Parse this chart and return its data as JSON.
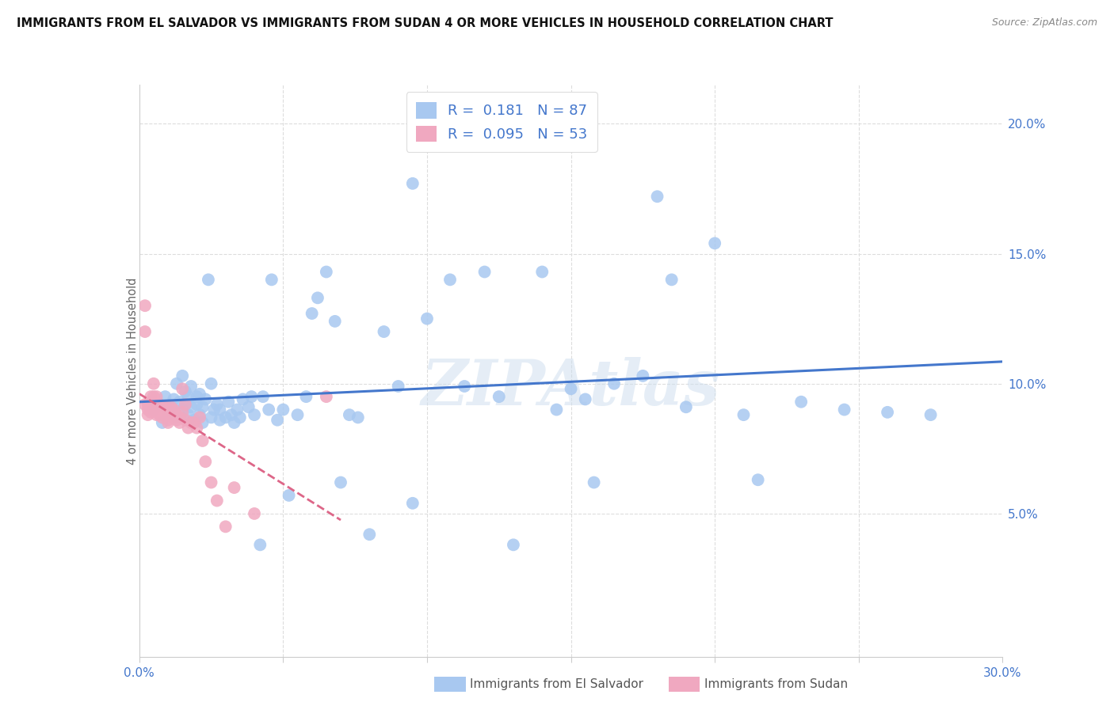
{
  "title": "IMMIGRANTS FROM EL SALVADOR VS IMMIGRANTS FROM SUDAN 4 OR MORE VEHICLES IN HOUSEHOLD CORRELATION CHART",
  "source": "Source: ZipAtlas.com",
  "ylabel": "4 or more Vehicles in Household",
  "ylabel_right_ticks": [
    "5.0%",
    "10.0%",
    "15.0%",
    "20.0%"
  ],
  "ylabel_right_vals": [
    0.05,
    0.1,
    0.15,
    0.2
  ],
  "xlim": [
    0.0,
    0.3
  ],
  "ylim": [
    -0.005,
    0.215
  ],
  "blue_R": "0.181",
  "blue_N": "87",
  "pink_R": "0.095",
  "pink_N": "53",
  "blue_color": "#a8c8f0",
  "pink_color": "#f0a8c0",
  "blue_line_color": "#4477cc",
  "pink_line_color": "#dd6688",
  "watermark": "ZIPAtlas",
  "blue_scatter_x": [
    0.005,
    0.007,
    0.008,
    0.009,
    0.01,
    0.011,
    0.012,
    0.013,
    0.013,
    0.014,
    0.015,
    0.015,
    0.016,
    0.016,
    0.017,
    0.017,
    0.018,
    0.018,
    0.019,
    0.02,
    0.02,
    0.021,
    0.021,
    0.022,
    0.022,
    0.023,
    0.024,
    0.025,
    0.025,
    0.026,
    0.027,
    0.028,
    0.028,
    0.03,
    0.031,
    0.032,
    0.033,
    0.034,
    0.035,
    0.036,
    0.038,
    0.039,
    0.04,
    0.042,
    0.043,
    0.045,
    0.046,
    0.048,
    0.05,
    0.052,
    0.055,
    0.058,
    0.06,
    0.062,
    0.065,
    0.068,
    0.07,
    0.073,
    0.076,
    0.08,
    0.085,
    0.09,
    0.095,
    0.1,
    0.108,
    0.113,
    0.12,
    0.125,
    0.13,
    0.14,
    0.145,
    0.15,
    0.158,
    0.165,
    0.175,
    0.185,
    0.19,
    0.2,
    0.215,
    0.23,
    0.245,
    0.26,
    0.275,
    0.155,
    0.095,
    0.18,
    0.21
  ],
  "blue_scatter_y": [
    0.09,
    0.092,
    0.085,
    0.095,
    0.088,
    0.091,
    0.094,
    0.087,
    0.1,
    0.093,
    0.09,
    0.103,
    0.092,
    0.097,
    0.088,
    0.095,
    0.091,
    0.099,
    0.086,
    0.092,
    0.095,
    0.088,
    0.096,
    0.091,
    0.085,
    0.094,
    0.14,
    0.1,
    0.087,
    0.09,
    0.092,
    0.086,
    0.09,
    0.087,
    0.093,
    0.088,
    0.085,
    0.09,
    0.087,
    0.094,
    0.091,
    0.095,
    0.088,
    0.038,
    0.095,
    0.09,
    0.14,
    0.086,
    0.09,
    0.057,
    0.088,
    0.095,
    0.127,
    0.133,
    0.143,
    0.124,
    0.062,
    0.088,
    0.087,
    0.042,
    0.12,
    0.099,
    0.054,
    0.125,
    0.14,
    0.099,
    0.143,
    0.095,
    0.038,
    0.143,
    0.09,
    0.098,
    0.062,
    0.1,
    0.103,
    0.14,
    0.091,
    0.154,
    0.063,
    0.093,
    0.09,
    0.089,
    0.088,
    0.094,
    0.177,
    0.172,
    0.088
  ],
  "pink_scatter_x": [
    0.002,
    0.002,
    0.002,
    0.003,
    0.003,
    0.003,
    0.004,
    0.004,
    0.004,
    0.005,
    0.005,
    0.005,
    0.006,
    0.006,
    0.006,
    0.006,
    0.007,
    0.007,
    0.007,
    0.008,
    0.008,
    0.008,
    0.009,
    0.009,
    0.01,
    0.01,
    0.01,
    0.011,
    0.011,
    0.011,
    0.012,
    0.012,
    0.013,
    0.013,
    0.014,
    0.014,
    0.015,
    0.015,
    0.016,
    0.016,
    0.017,
    0.018,
    0.019,
    0.02,
    0.021,
    0.022,
    0.023,
    0.025,
    0.027,
    0.03,
    0.033,
    0.04,
    0.065
  ],
  "pink_scatter_y": [
    0.13,
    0.12,
    0.092,
    0.092,
    0.09,
    0.088,
    0.095,
    0.093,
    0.089,
    0.092,
    0.095,
    0.1,
    0.095,
    0.092,
    0.09,
    0.088,
    0.092,
    0.091,
    0.088,
    0.091,
    0.09,
    0.087,
    0.091,
    0.088,
    0.088,
    0.086,
    0.085,
    0.091,
    0.089,
    0.09,
    0.09,
    0.087,
    0.086,
    0.088,
    0.087,
    0.085,
    0.089,
    0.098,
    0.086,
    0.092,
    0.083,
    0.085,
    0.085,
    0.083,
    0.087,
    0.078,
    0.07,
    0.062,
    0.055,
    0.045,
    0.06,
    0.05,
    0.095
  ]
}
